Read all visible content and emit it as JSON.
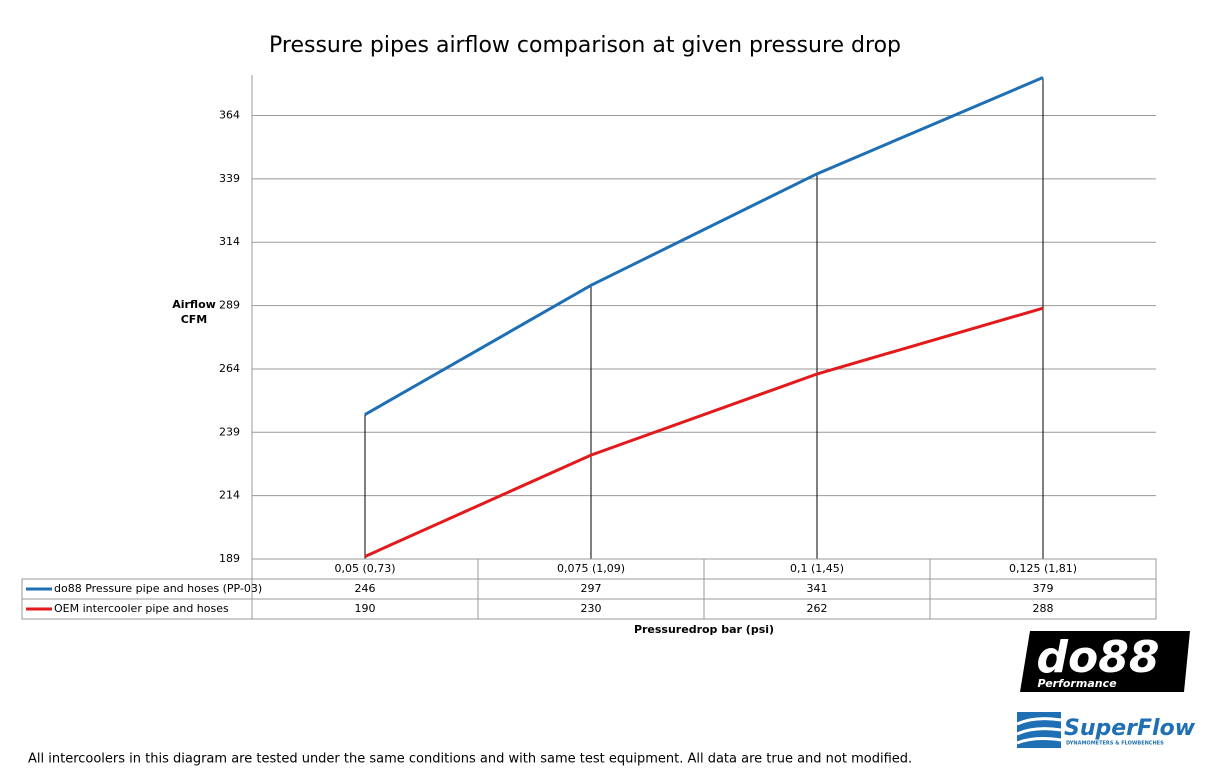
{
  "chart_data": {
    "type": "line",
    "title": "Pressure pipes airflow comparison at given pressure drop",
    "y_label": "Airflow CFM",
    "x_label": "Pressuredrop bar (psi)",
    "categories": [
      "0,05 (0,73)",
      "0,075 (1,09)",
      "0,1 (1,45)",
      "0,125 (1,81)"
    ],
    "series": [
      {
        "name": "do88 Pressure pipe and hoses (PP-03)",
        "color": "#1f6fb4",
        "values": [
          246,
          297,
          341,
          379
        ]
      },
      {
        "name": "OEM intercooler pipe and hoses",
        "color": "#e31a1c",
        "values": [
          190,
          230,
          262,
          288
        ]
      }
    ],
    "ylim": [
      189,
      380
    ],
    "yticks": [
      189,
      214,
      239,
      264,
      289,
      314,
      339,
      364
    ],
    "grid": true,
    "drop_lines": true,
    "data_table": true
  },
  "footnote": "All intercoolers in this diagram are tested under the same conditions and with same test equipment. All data are true and not modified.",
  "logos": {
    "do88": "do88",
    "do88_sub": "Performance",
    "superflow": "SuperFlow",
    "superflow_sub": "DYNAMOMETERS & FLOWBENCHES"
  }
}
